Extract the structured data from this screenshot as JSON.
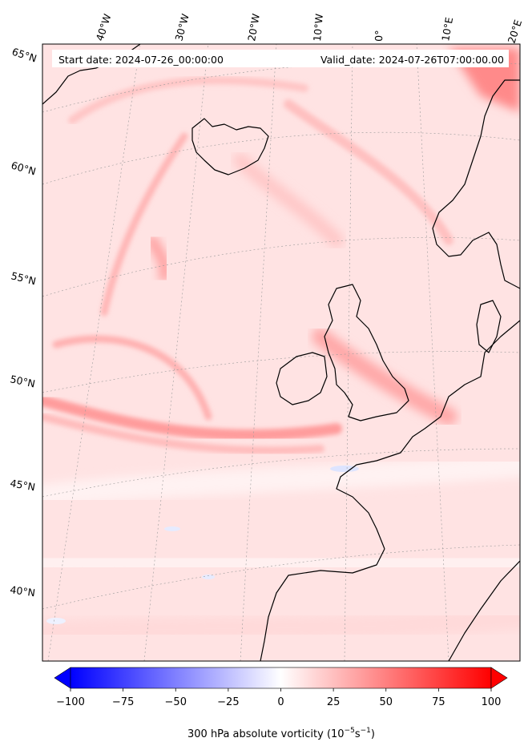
{
  "header": {
    "start_date": "Start date: 2024-07-26_00:00:00",
    "valid_date": "Valid_date: 2024-07-26T07:00:00.00"
  },
  "lon_labels": [
    "40°W",
    "30°W",
    "20°W",
    "10°W",
    "0°",
    "10°E",
    "20°E"
  ],
  "lat_labels": [
    "65°N",
    "60°N",
    "55°N",
    "50°N",
    "45°N",
    "40°N"
  ],
  "colorbar": {
    "ticks": [
      "−100",
      "−75",
      "−50",
      "−25",
      "0",
      "25",
      "50",
      "75",
      "100"
    ],
    "min": -100,
    "max": 100,
    "label_main": "300 hPa absolute vorticity (10",
    "label_exp1": "−5",
    "label_mid": "s",
    "label_exp2": "−1",
    "label_end": ")",
    "colormap": "bwr",
    "extend": "both"
  },
  "map": {
    "projection": "Lambert conformal",
    "field": "300 hPa absolute vorticity",
    "coastlines": true,
    "gridlines": "dotted"
  }
}
